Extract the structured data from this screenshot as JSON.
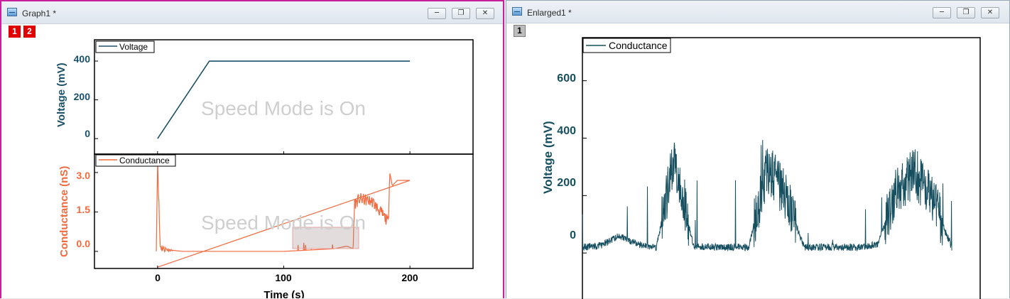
{
  "colors": {
    "voltage": "#1b5168",
    "conductance": "#f26a3d",
    "enlarged": "#164f5f",
    "active_border": "#c7209a"
  },
  "graph1": {
    "title": "Graph1 *",
    "layer_tabs": [
      "1",
      "2"
    ],
    "watermark": "Speed Mode is On",
    "top_panel": {
      "ylabel": "Voltage (mV)",
      "legend": "Voltage",
      "yticks": [
        "0",
        "200",
        "400"
      ]
    },
    "bottom_panel": {
      "ylabel": "Conductance (nS)",
      "legend": "Conductance",
      "yticks": [
        "0.0",
        "1.5",
        "3.0"
      ]
    },
    "xticks": [
      "0",
      "100",
      "200"
    ],
    "xlabel": "Time (s)"
  },
  "enlarged1": {
    "title": "Enlarged1 *",
    "layer_tab": "1",
    "ylabel": "Voltage (mV)",
    "legend": "Conductance",
    "yticks": [
      "0",
      "200",
      "400",
      "600"
    ]
  },
  "chart_data": [
    {
      "type": "line",
      "title": "",
      "series": [
        {
          "name": "Voltage",
          "x": [
            0,
            41,
            200
          ],
          "y": [
            0,
            400,
            400
          ]
        }
      ],
      "xlabel": "",
      "ylabel": "Voltage (mV)",
      "xlim": [
        -50,
        250
      ],
      "ylim": [
        -80,
        510
      ]
    },
    {
      "type": "line",
      "title": "",
      "series": [
        {
          "name": "Conductance",
          "x": [
            -1,
            0,
            2,
            5,
            10,
            20,
            40,
            60,
            80,
            100,
            120,
            140,
            150,
            155,
            156,
            160,
            170,
            180,
            183,
            184,
            186,
            190,
            200
          ],
          "y": [
            0.0,
            3.6,
            0.2,
            0.1,
            0.05,
            0.0,
            0.0,
            0.0,
            0.0,
            0.0,
            0.05,
            0.1,
            0.2,
            0.1,
            1.8,
            2.0,
            1.9,
            1.3,
            1.1,
            3.0,
            2.5,
            2.7,
            2.7
          ]
        }
      ],
      "xlabel": "Time (s)",
      "ylabel": "Conductance (nS)",
      "xlim": [
        -50,
        250
      ],
      "ylim": [
        -0.65,
        3.7
      ]
    },
    {
      "type": "line",
      "title": "",
      "series": [
        {
          "name": "Conductance",
          "x": [
            0,
            5,
            10,
            15,
            20,
            25,
            30,
            35,
            40,
            45,
            50,
            55,
            60,
            65,
            70,
            75,
            80,
            85,
            90,
            95,
            100
          ],
          "y": [
            20,
            25,
            60,
            30,
            20,
            330,
            25,
            20,
            20,
            20,
            300,
            200,
            20,
            20,
            20,
            20,
            30,
            220,
            280,
            180,
            20
          ]
        }
      ],
      "xlabel": "",
      "ylabel": "Voltage (mV)",
      "ylim": [
        -190,
        750
      ]
    }
  ]
}
